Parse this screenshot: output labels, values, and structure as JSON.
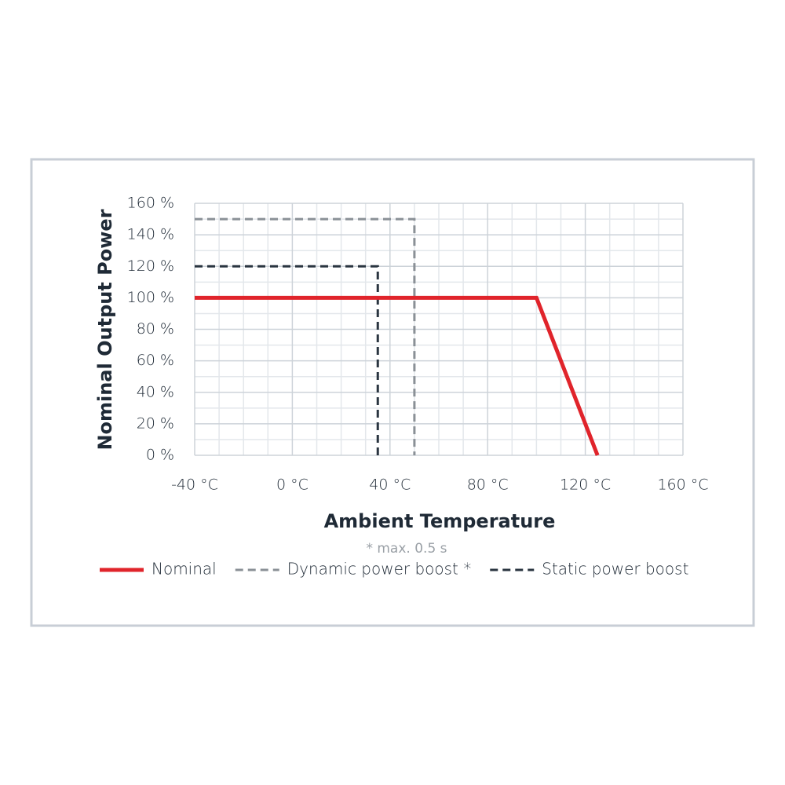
{
  "chart_data": {
    "type": "line",
    "xlabel": "Ambient Temperature",
    "ylabel": "Nominal Output Power",
    "annotation": "* max. 0.5 s",
    "xlim": [
      -40,
      160
    ],
    "ylim": [
      0,
      160
    ],
    "xticks": [
      {
        "value": -40,
        "label": "-40 °C"
      },
      {
        "value": 0,
        "label": "0 °C"
      },
      {
        "value": 40,
        "label": "40 °C"
      },
      {
        "value": 80,
        "label": "80 °C"
      },
      {
        "value": 120,
        "label": "120 °C"
      },
      {
        "value": 160,
        "label": "160 °C"
      }
    ],
    "yticks": [
      {
        "value": 0,
        "label": "0 %"
      },
      {
        "value": 20,
        "label": "20 %"
      },
      {
        "value": 40,
        "label": "40 %"
      },
      {
        "value": 60,
        "label": "60 %"
      },
      {
        "value": 80,
        "label": "80 %"
      },
      {
        "value": 100,
        "label": "100 %"
      },
      {
        "value": 120,
        "label": "120 %"
      },
      {
        "value": 140,
        "label": "140 %"
      },
      {
        "value": 160,
        "label": "160 %"
      }
    ],
    "grid": true,
    "legend": "bottom",
    "series": [
      {
        "name": "Nominal",
        "color": "#e0242b",
        "line_style": "solid",
        "x": [
          -40,
          100,
          125
        ],
        "values": [
          100,
          100,
          0
        ]
      },
      {
        "name": "Dynamic power boost *",
        "color": "#8a9096",
        "line_style": "dashed",
        "x": [
          -40,
          50,
          50
        ],
        "values": [
          150,
          150,
          0
        ]
      },
      {
        "name": "Static power boost",
        "color": "#2a3540",
        "line_style": "dashed",
        "x": [
          -40,
          35,
          35
        ],
        "values": [
          120,
          120,
          0
        ]
      }
    ]
  }
}
